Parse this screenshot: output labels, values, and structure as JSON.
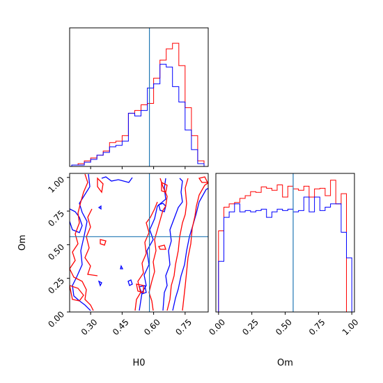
{
  "chart_data": [
    {
      "panel": "H0 marginal",
      "type": "histogram",
      "xlim": [
        0.2,
        0.86
      ],
      "truth": 0.58,
      "bins": [
        0.21,
        0.24,
        0.27,
        0.3,
        0.33,
        0.36,
        0.39,
        0.42,
        0.45,
        0.48,
        0.51,
        0.54,
        0.57,
        0.6,
        0.63,
        0.66,
        0.69,
        0.72,
        0.75,
        0.78,
        0.81,
        0.84
      ],
      "series": [
        {
          "name": "red",
          "color": "#ff0000",
          "values": [
            1,
            2,
            4,
            6,
            8,
            11,
            17,
            18,
            22,
            38,
            40,
            44,
            45,
            63,
            76,
            84,
            88,
            72,
            42,
            22,
            4
          ]
        },
        {
          "name": "blue",
          "color": "#0000ff",
          "values": [
            1,
            1,
            3,
            5,
            8,
            10,
            14,
            15,
            18,
            38,
            36,
            40,
            56,
            59,
            73,
            71,
            57,
            46,
            26,
            12,
            2
          ]
        }
      ]
    },
    {
      "panel": "H0 vs Om",
      "type": "contour",
      "xlabel": "H0",
      "ylabel": "Om",
      "xlim": [
        0.2,
        0.86
      ],
      "ylim": [
        0.0,
        1.03
      ],
      "xticks": [
        "0.30",
        "0.45",
        "0.60",
        "0.75"
      ],
      "yticks": [
        "0.00",
        "0.25",
        "0.50",
        "0.75",
        "1.00"
      ],
      "truth_x": 0.58,
      "truth_y": 0.56
    },
    {
      "panel": "Om marginal",
      "type": "histogram",
      "xlabel": "Om",
      "xlim": [
        -0.02,
        1.02
      ],
      "xticks": [
        "0.00",
        "0.25",
        "0.50",
        "0.75",
        "1.00"
      ],
      "truth": 0.56,
      "bins": [
        0.0,
        0.04,
        0.08,
        0.12,
        0.16,
        0.2,
        0.24,
        0.28,
        0.32,
        0.36,
        0.4,
        0.44,
        0.48,
        0.52,
        0.56,
        0.6,
        0.64,
        0.68,
        0.72,
        0.76,
        0.8,
        0.84,
        0.88,
        0.92,
        0.96,
        1.0
      ],
      "series": [
        {
          "name": "red",
          "color": "#ff0000",
          "values": [
            120,
            155,
            160,
            162,
            168,
            172,
            178,
            177,
            185,
            183,
            180,
            188,
            170,
            186,
            182,
            180,
            186,
            170,
            182,
            183,
            172,
            195,
            160,
            175,
            0
          ]
        },
        {
          "name": "blue",
          "color": "#0000ff",
          "values": [
            75,
            140,
            148,
            160,
            148,
            150,
            148,
            150,
            152,
            140,
            148,
            152,
            150,
            152,
            148,
            150,
            170,
            148,
            170,
            150,
            155,
            160,
            160,
            118,
            80
          ]
        }
      ]
    }
  ]
}
